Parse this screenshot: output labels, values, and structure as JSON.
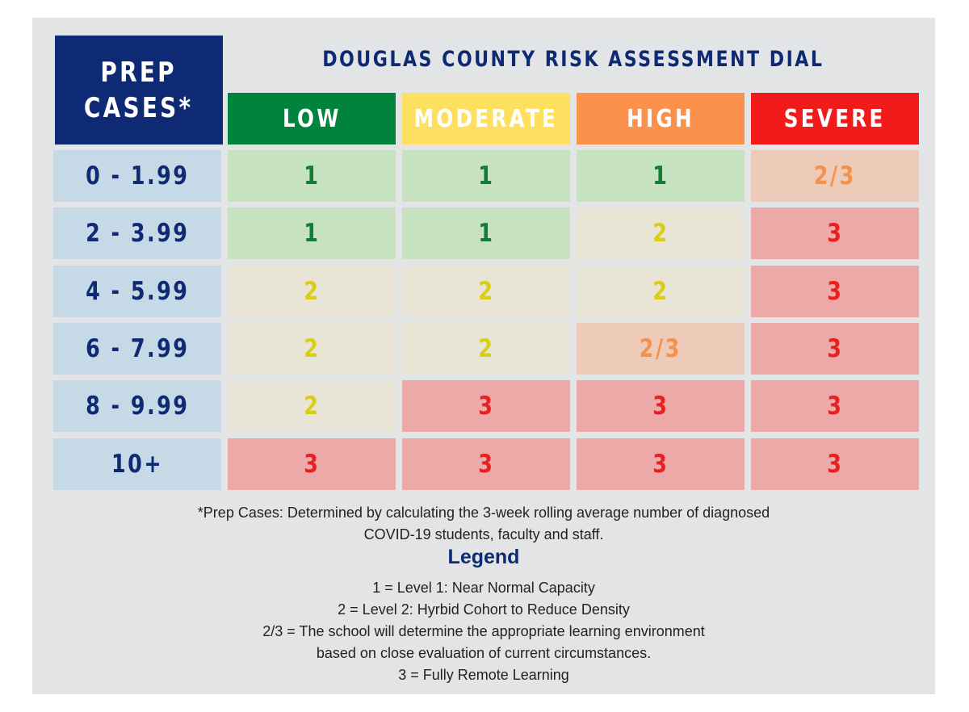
{
  "prep_header": [
    "PREP",
    "CASES*"
  ],
  "title": "DOUGLAS COUNTY RISK ASSESSMENT DIAL",
  "columns": [
    {
      "label": "LOW",
      "color": "#00843d"
    },
    {
      "label": "MODERATE",
      "color": "#fde05f"
    },
    {
      "label": "HIGH",
      "color": "#fb914b"
    },
    {
      "label": "SEVERE",
      "color": "#f21b1b"
    }
  ],
  "rows": [
    {
      "label": "0 - 1.99",
      "values": [
        "1",
        "1",
        "1",
        "2/3"
      ]
    },
    {
      "label": "2 - 3.99",
      "values": [
        "1",
        "1",
        "2",
        "3"
      ]
    },
    {
      "label": "4 - 5.99",
      "values": [
        "2",
        "2",
        "2",
        "3"
      ]
    },
    {
      "label": "6 - 7.99",
      "values": [
        "2",
        "2",
        "2/3",
        "3"
      ]
    },
    {
      "label": "8 - 9.99",
      "values": [
        "2",
        "3",
        "3",
        "3"
      ]
    },
    {
      "label": "10+",
      "values": [
        "3",
        "3",
        "3",
        "3"
      ]
    }
  ],
  "level_styles": {
    "1": {
      "bg": "#c6e2c1",
      "fg": "#127b35"
    },
    "2": {
      "bg": "#e9e5d6",
      "fg": "#d8cf14"
    },
    "2/3": {
      "bg": "#eecbb9",
      "fg": "#f2924c"
    },
    "3": {
      "bg": "#eca9a8",
      "fg": "#e8201f"
    }
  },
  "footnote": [
    "*Prep Cases: Determined by calculating the  3-week rolling average number of diagnosed",
    "COVID-19 students, faculty and staff."
  ],
  "legend": {
    "title": "Legend",
    "items": [
      "1  = Level 1: Near Normal Capacity",
      "2  = Level 2: Hyrbid Cohort to Reduce Density",
      "2/3  = The school will determine the appropriate learning environment",
      "based on close evaluation of current circumstances.",
      "3  = Fully Remote Learning"
    ]
  }
}
